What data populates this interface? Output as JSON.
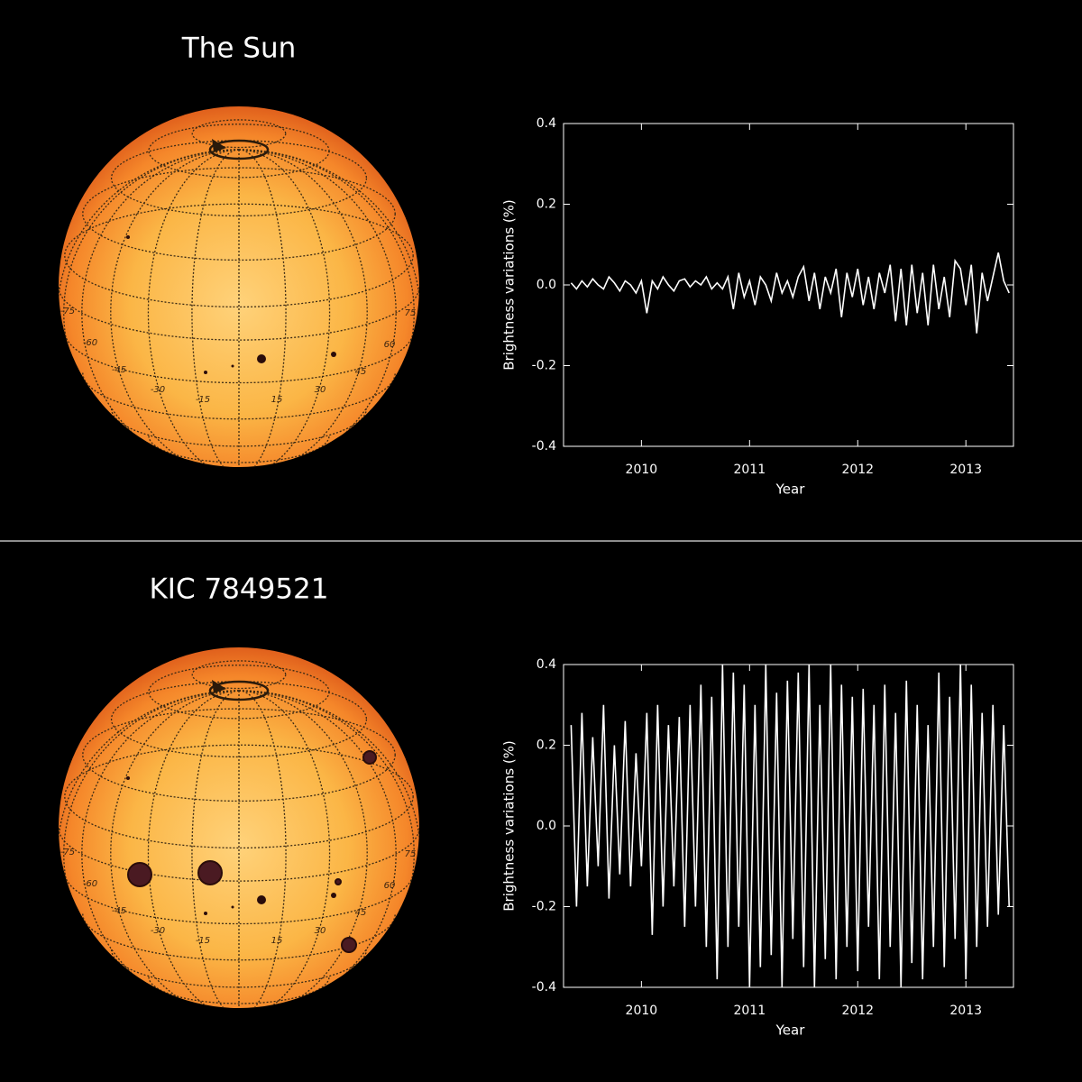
{
  "globe": {
    "longitude_labels": [
      "-75",
      "-60",
      "-45",
      "-30",
      "-15",
      "15",
      "30",
      "45",
      "60",
      "75"
    ]
  },
  "chart_data": [
    {
      "type": "line",
      "title": "The Sun",
      "x_label": "Year",
      "y_label": "Brightness variations (%)",
      "color": "#ffffff",
      "x": [
        2009.35,
        2009.4,
        2009.45,
        2009.5,
        2009.55,
        2009.6,
        2009.65,
        2009.7,
        2009.75,
        2009.8,
        2009.85,
        2009.9,
        2009.95,
        2010.0,
        2010.05,
        2010.1,
        2010.15,
        2010.2,
        2010.25,
        2010.3,
        2010.35,
        2010.4,
        2010.45,
        2010.5,
        2010.55,
        2010.6,
        2010.65,
        2010.7,
        2010.75,
        2010.8,
        2010.85,
        2010.9,
        2010.95,
        2011.0,
        2011.05,
        2011.1,
        2011.15,
        2011.2,
        2011.25,
        2011.3,
        2011.35,
        2011.4,
        2011.45,
        2011.5,
        2011.55,
        2011.6,
        2011.65,
        2011.7,
        2011.75,
        2011.8,
        2011.85,
        2011.9,
        2011.95,
        2012.0,
        2012.05,
        2012.1,
        2012.15,
        2012.2,
        2012.25,
        2012.3,
        2012.35,
        2012.4,
        2012.45,
        2012.5,
        2012.55,
        2012.6,
        2012.65,
        2012.7,
        2012.75,
        2012.8,
        2012.85,
        2012.9,
        2012.95,
        2013.0,
        2013.05,
        2013.1,
        2013.15,
        2013.2,
        2013.25,
        2013.3,
        2013.35,
        2013.4
      ],
      "values": [
        0.005,
        -0.01,
        0.01,
        -0.005,
        0.015,
        0.0,
        -0.01,
        0.02,
        0.005,
        -0.015,
        0.01,
        0.0,
        -0.02,
        0.01,
        -0.07,
        0.01,
        -0.01,
        0.02,
        0.0,
        -0.015,
        0.01,
        0.015,
        -0.005,
        0.01,
        0.0,
        0.02,
        -0.01,
        0.005,
        -0.01,
        0.02,
        -0.06,
        0.03,
        -0.03,
        0.01,
        -0.05,
        0.02,
        0.0,
        -0.04,
        0.03,
        -0.02,
        0.01,
        -0.03,
        0.02,
        0.045,
        -0.04,
        0.03,
        -0.06,
        0.02,
        -0.02,
        0.04,
        -0.08,
        0.03,
        -0.03,
        0.04,
        -0.05,
        0.02,
        -0.06,
        0.03,
        -0.02,
        0.05,
        -0.09,
        0.04,
        -0.1,
        0.05,
        -0.07,
        0.03,
        -0.1,
        0.05,
        -0.06,
        0.02,
        -0.08,
        0.06,
        0.04,
        -0.05,
        0.05,
        -0.12,
        0.03,
        -0.04,
        0.02,
        0.08,
        0.01,
        -0.02
      ],
      "xlim": [
        2009.28,
        2013.44
      ],
      "xticks": [
        2010,
        2011,
        2012,
        2013
      ],
      "ylim": [
        -0.4,
        0.4
      ],
      "yticks": [
        -0.4,
        -0.2,
        {
          "value": 0,
          "label": "0.0"
        },
        0.2,
        0.4
      ]
    },
    {
      "type": "line",
      "title": "KIC 7849521",
      "x_label": "Year",
      "y_label": "Brightness variations (%)",
      "color": "#ffffff",
      "x": [
        2009.35,
        2009.4,
        2009.45,
        2009.5,
        2009.55,
        2009.6,
        2009.65,
        2009.7,
        2009.75,
        2009.8,
        2009.85,
        2009.9,
        2009.95,
        2010.0,
        2010.05,
        2010.1,
        2010.15,
        2010.2,
        2010.25,
        2010.3,
        2010.35,
        2010.4,
        2010.45,
        2010.5,
        2010.55,
        2010.6,
        2010.65,
        2010.7,
        2010.75,
        2010.8,
        2010.85,
        2010.9,
        2010.95,
        2011.0,
        2011.05,
        2011.1,
        2011.15,
        2011.2,
        2011.25,
        2011.3,
        2011.35,
        2011.4,
        2011.45,
        2011.5,
        2011.55,
        2011.6,
        2011.65,
        2011.7,
        2011.75,
        2011.8,
        2011.85,
        2011.9,
        2011.95,
        2012.0,
        2012.05,
        2012.1,
        2012.15,
        2012.2,
        2012.25,
        2012.3,
        2012.35,
        2012.4,
        2012.45,
        2012.5,
        2012.55,
        2012.6,
        2012.65,
        2012.7,
        2012.75,
        2012.8,
        2012.85,
        2012.9,
        2012.95,
        2013.0,
        2013.05,
        2013.1,
        2013.15,
        2013.2,
        2013.25,
        2013.3,
        2013.35,
        2013.4
      ],
      "values": [
        0.25,
        -0.2,
        0.28,
        -0.15,
        0.22,
        -0.1,
        0.3,
        -0.18,
        0.2,
        -0.12,
        0.26,
        -0.15,
        0.18,
        -0.1,
        0.28,
        -0.27,
        0.3,
        -0.2,
        0.25,
        -0.15,
        0.27,
        -0.25,
        0.3,
        -0.2,
        0.35,
        -0.3,
        0.32,
        -0.38,
        0.4,
        -0.3,
        0.38,
        -0.25,
        0.35,
        -0.4,
        0.3,
        -0.35,
        0.4,
        -0.32,
        0.33,
        -0.4,
        0.36,
        -0.28,
        0.38,
        -0.35,
        0.4,
        -0.4,
        0.3,
        -0.33,
        0.4,
        -0.38,
        0.35,
        -0.3,
        0.32,
        -0.36,
        0.34,
        -0.25,
        0.3,
        -0.38,
        0.35,
        -0.3,
        0.28,
        -0.4,
        0.36,
        -0.34,
        0.3,
        -0.38,
        0.25,
        -0.3,
        0.38,
        -0.35,
        0.32,
        -0.28,
        0.4,
        -0.38,
        0.35,
        -0.3,
        0.28,
        -0.25,
        0.3,
        -0.22,
        0.25,
        -0.2
      ],
      "xlim": [
        2009.28,
        2013.44
      ],
      "xticks": [
        2010,
        2011,
        2012,
        2013
      ],
      "ylim": [
        -0.4,
        0.4
      ],
      "yticks": [
        -0.4,
        -0.2,
        {
          "value": 0,
          "label": "0.0"
        },
        0.2,
        0.4
      ]
    }
  ]
}
